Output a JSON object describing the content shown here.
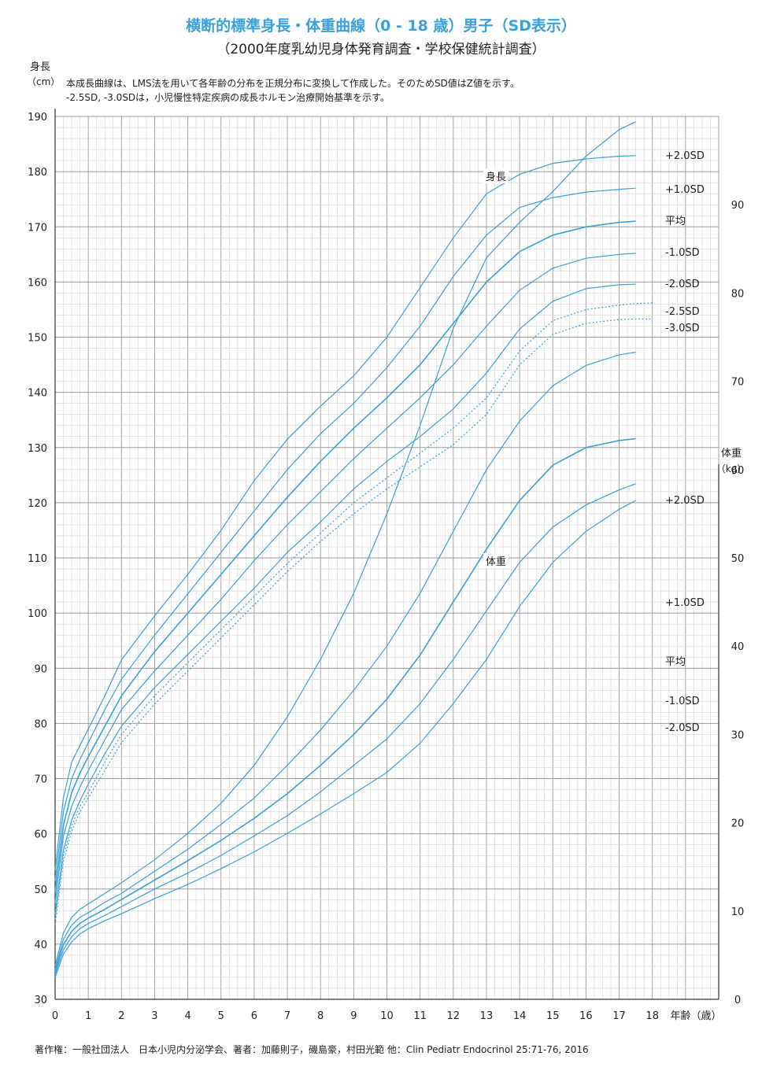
{
  "header": {
    "title": "横断的標準身長・体重曲線（0 - 18 歳）男子（SD表示）",
    "subtitle": "（2000年度乳幼児身体発育調査・学校保健統計調査）"
  },
  "note": {
    "line1": "本成長曲線は、LMS法を用いて各年齢の分布を正規分布に変換して作成した。そのためSD値はZ値を示す。",
    "line2": "-2.5SD, -3.0SDは，小児慢性特定疾病の成長ホルモン治療開始基準を示す。"
  },
  "footer": {
    "copyright": "著作権：一般社団法人　日本小児内分泌学会、著者：加藤則子，磯島豪，村田光範 他：Clin Pediatr Endocrinol 25:71-76, 2016"
  },
  "colors": {
    "curve": "#3aa0d8",
    "grid_major": "#999999",
    "grid_minor": "#d4d4d4",
    "title": "#3aa0d8"
  },
  "chart_data": {
    "type": "line",
    "title": "横断的標準身長・体重曲線（0 - 18 歳）男子（SD表示）",
    "xlabel": "年齢（歳）",
    "xlim": [
      0,
      20
    ],
    "x_ticks": [
      "0",
      "1",
      "2",
      "3",
      "4",
      "5",
      "6",
      "7",
      "8",
      "9",
      "10",
      "11",
      "12",
      "13",
      "14",
      "15",
      "16",
      "17",
      "18"
    ],
    "grid": true,
    "height": {
      "axis_title": "身長",
      "unit": "（cm）",
      "ylim": [
        30,
        190
      ],
      "y_ticks": [
        "30",
        "40",
        "50",
        "60",
        "70",
        "80",
        "90",
        "100",
        "110",
        "120",
        "130",
        "140",
        "150",
        "160",
        "170",
        "180",
        "190"
      ],
      "curve_label": "身長",
      "series": [
        {
          "name": "+2.0SD",
          "dashed": false,
          "x": [
            0,
            0.25,
            0.5,
            0.75,
            1,
            1.5,
            2,
            3,
            4,
            5,
            6,
            7,
            8,
            9,
            10,
            11,
            12,
            13,
            14,
            15,
            16,
            17,
            17.5
          ],
          "values": [
            53.5,
            66.5,
            73,
            76,
            79,
            85,
            91.5,
            99.5,
            107,
            115,
            124,
            131.5,
            137.5,
            143,
            150,
            159,
            168,
            176,
            179.5,
            181.5,
            182.3,
            182.8,
            182.9
          ]
        },
        {
          "name": "+1.0SD",
          "dashed": false,
          "x": [
            0,
            0.25,
            0.5,
            0.75,
            1,
            1.5,
            2,
            3,
            4,
            5,
            6,
            7,
            8,
            9,
            10,
            11,
            12,
            13,
            14,
            15,
            16,
            17,
            17.5
          ],
          "values": [
            51.5,
            64,
            70,
            73.5,
            76.5,
            82.5,
            88,
            96,
            103.5,
            111,
            118.5,
            126,
            132.5,
            138,
            144.5,
            152,
            161,
            168.5,
            173.5,
            175.3,
            176.3,
            176.8,
            177
          ]
        },
        {
          "name": "平均",
          "dashed": false,
          "x": [
            0,
            0.25,
            0.5,
            0.75,
            1,
            1.5,
            2,
            3,
            4,
            5,
            6,
            7,
            8,
            9,
            10,
            11,
            12,
            13,
            14,
            15,
            16,
            17,
            17.5
          ],
          "values": [
            49.5,
            61.5,
            67.5,
            71,
            74,
            79.5,
            85,
            93,
            100,
            107,
            114,
            121,
            127.5,
            133.5,
            139,
            145,
            152.5,
            160,
            165.5,
            168.5,
            170,
            170.8,
            171
          ]
        },
        {
          "name": "-1.0SD",
          "dashed": false,
          "x": [
            0,
            0.25,
            0.5,
            0.75,
            1,
            1.5,
            2,
            3,
            4,
            5,
            6,
            7,
            8,
            9,
            10,
            11,
            12,
            13,
            14,
            15,
            16,
            17,
            17.5
          ],
          "values": [
            47.5,
            59.5,
            65,
            68.5,
            71.5,
            77,
            82.5,
            89.5,
            96,
            102.5,
            109.5,
            116,
            122,
            128,
            133.5,
            139,
            145,
            152,
            158.5,
            162.5,
            164.3,
            165,
            165.2
          ]
        },
        {
          "name": "-2.0SD",
          "dashed": false,
          "x": [
            0,
            0.25,
            0.5,
            0.75,
            1,
            1.5,
            2,
            3,
            4,
            5,
            6,
            7,
            8,
            9,
            10,
            11,
            12,
            13,
            14,
            15,
            16,
            17,
            17.5
          ],
          "values": [
            45.5,
            57,
            62.5,
            66,
            69,
            74.5,
            79.5,
            86.5,
            92.5,
            98.5,
            104.5,
            111,
            116.5,
            122.5,
            127.5,
            132,
            137,
            143.5,
            151.5,
            156.5,
            158.8,
            159.5,
            159.6
          ]
        },
        {
          "name": "-2.5SD",
          "dashed": true,
          "x": [
            0,
            0.25,
            0.5,
            0.75,
            1,
            1.5,
            2,
            3,
            4,
            5,
            6,
            7,
            8,
            9,
            10,
            11,
            12,
            13,
            14,
            15,
            16,
            17,
            17.5,
            18
          ],
          "values": [
            44.5,
            56,
            61.5,
            65,
            67.5,
            73,
            78,
            85,
            91,
            97,
            103,
            109,
            114.5,
            120,
            124.5,
            129,
            133.5,
            139,
            147.5,
            153,
            155,
            155.8,
            156.1,
            156.2
          ]
        },
        {
          "name": "-3.0SD",
          "dashed": true,
          "x": [
            0,
            0.25,
            0.5,
            0.75,
            1,
            1.5,
            2,
            3,
            4,
            5,
            6,
            7,
            8,
            9,
            10,
            11,
            12,
            13,
            14,
            15,
            16,
            17,
            17.5,
            18
          ],
          "values": [
            43.5,
            55,
            60.5,
            64,
            66.5,
            71.5,
            76.5,
            83.5,
            89.5,
            95.5,
            101.5,
            107.5,
            113,
            118,
            122.5,
            126.5,
            130.5,
            136,
            145,
            150.5,
            152.5,
            153.2,
            153.3,
            153.3
          ]
        }
      ]
    },
    "weight": {
      "axis_title": "体重",
      "unit": "（kg）",
      "ylim": [
        0,
        100
      ],
      "y_ticks": [
        "0",
        "10",
        "20",
        "30",
        "40",
        "50",
        "60",
        "70",
        "80",
        "90"
      ],
      "curve_label": "体重",
      "series": [
        {
          "name": "+2.0SD",
          "dashed": false,
          "x": [
            0,
            0.25,
            0.5,
            0.75,
            1,
            1.5,
            2,
            3,
            4,
            5,
            6,
            7,
            8,
            9,
            10,
            11,
            12,
            13,
            14,
            15,
            16,
            17,
            17.5
          ],
          "values": [
            3.8,
            7.5,
            9.3,
            10.2,
            10.8,
            12,
            13.2,
            15.8,
            18.8,
            22.2,
            26.5,
            32,
            38.5,
            46,
            55,
            65,
            76,
            84,
            88,
            91.5,
            95.5,
            98.5,
            99.4
          ]
        },
        {
          "name": "+1.0SD",
          "dashed": false,
          "x": [
            0,
            0.25,
            0.5,
            0.75,
            1,
            1.5,
            2,
            3,
            4,
            5,
            6,
            7,
            8,
            9,
            10,
            11,
            12,
            13,
            14,
            15,
            16,
            17,
            17.5
          ],
          "values": [
            3.4,
            6.8,
            8.4,
            9.3,
            9.8,
            11,
            12,
            14.5,
            17,
            19.8,
            22.8,
            26.5,
            30.5,
            35,
            40,
            46,
            53,
            60,
            65.5,
            69.5,
            71.8,
            73,
            73.3
          ]
        },
        {
          "name": "平均",
          "dashed": false,
          "x": [
            0,
            0.25,
            0.5,
            0.75,
            1,
            1.5,
            2,
            3,
            4,
            5,
            6,
            7,
            8,
            9,
            10,
            11,
            12,
            13,
            14,
            15,
            16,
            17,
            17.5
          ],
          "values": [
            3.1,
            6.2,
            7.7,
            8.6,
            9.2,
            10.2,
            11.3,
            13.5,
            15.7,
            18,
            20.5,
            23.3,
            26.5,
            30,
            34,
            39,
            45,
            51,
            56.5,
            60.5,
            62.5,
            63.3,
            63.5
          ]
        },
        {
          "name": "-1.0SD",
          "dashed": false,
          "x": [
            0,
            0.25,
            0.5,
            0.75,
            1,
            1.5,
            2,
            3,
            4,
            5,
            6,
            7,
            8,
            9,
            10,
            11,
            12,
            13,
            14,
            15,
            16,
            17,
            17.5
          ],
          "values": [
            2.8,
            5.6,
            7.1,
            8,
            8.6,
            9.5,
            10.5,
            12.5,
            14.3,
            16.3,
            18.5,
            20.8,
            23.5,
            26.5,
            29.5,
            33.5,
            38.5,
            44,
            49.5,
            53.5,
            56,
            57.7,
            58.4
          ]
        },
        {
          "name": "-2.0SD",
          "dashed": false,
          "x": [
            0,
            0.25,
            0.5,
            0.75,
            1,
            1.5,
            2,
            3,
            4,
            5,
            6,
            7,
            8,
            9,
            10,
            11,
            12,
            13,
            14,
            15,
            16,
            17,
            17.5
          ],
          "values": [
            2.5,
            5.1,
            6.5,
            7.4,
            8,
            8.9,
            9.7,
            11.4,
            13,
            14.8,
            16.7,
            18.8,
            21,
            23.3,
            25.7,
            29,
            33.5,
            38.5,
            44.5,
            49.5,
            53,
            55.5,
            56.5
          ]
        }
      ]
    }
  }
}
